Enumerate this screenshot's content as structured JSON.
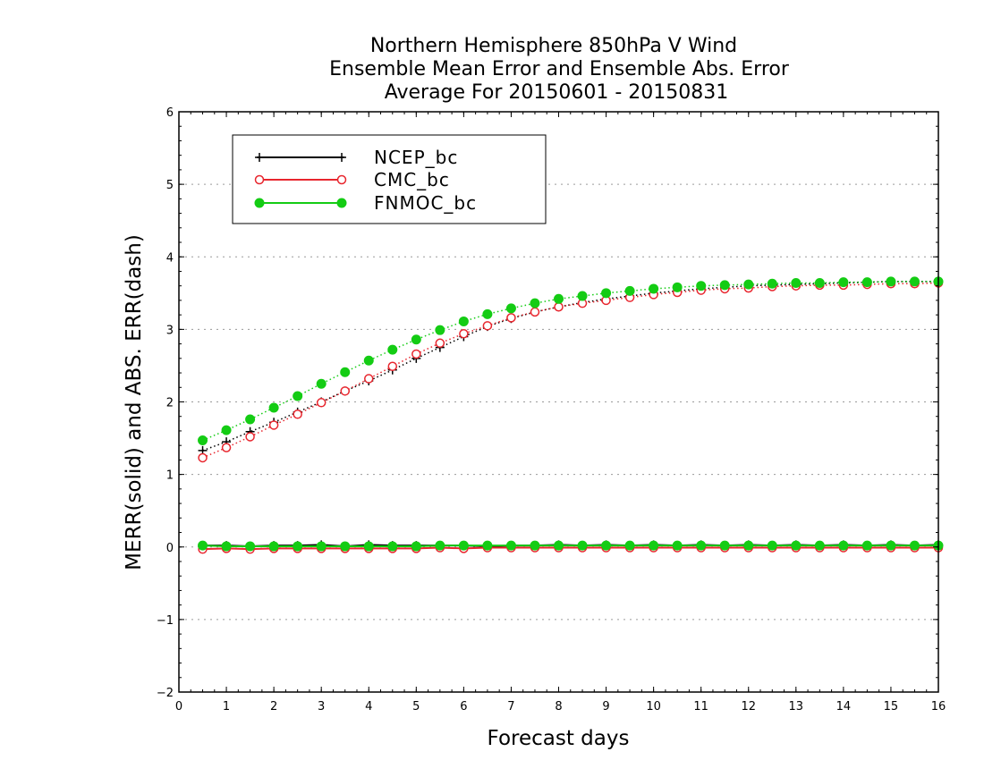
{
  "chart_data": {
    "type": "line",
    "title_lines": [
      "Northern Hemisphere 850hPa V Wind",
      "Ensemble Mean Error and Ensemble Abs. Error",
      "Average For 20150601 - 20150831"
    ],
    "xlabel": "Forecast days",
    "ylabel": "MERR(solid) and ABS. ERR(dash)",
    "xlim": [
      0,
      16
    ],
    "ylim": [
      -2,
      6
    ],
    "x_ticks": [
      "0",
      "1",
      "2",
      "3",
      "4",
      "5",
      "6",
      "7",
      "8",
      "9",
      "10",
      "11",
      "12",
      "13",
      "14",
      "15",
      "16"
    ],
    "y_ticks": [
      "−2",
      "−1",
      "0",
      "1",
      "2",
      "3",
      "4",
      "5",
      "6"
    ],
    "grid": "horizontal dotted",
    "legend_position": "top-left",
    "x": [
      0.5,
      1,
      1.5,
      2,
      2.5,
      3,
      3.5,
      4,
      4.5,
      5,
      5.5,
      6,
      6.5,
      7,
      7.5,
      8,
      8.5,
      9,
      9.5,
      10,
      10.5,
      11,
      11.5,
      12,
      12.5,
      13,
      13.5,
      14,
      14.5,
      15,
      15.5,
      16
    ],
    "series": [
      {
        "name": "NCEP_bc",
        "color": "#000000",
        "marker": "plus",
        "merr": [
          0.02,
          0.02,
          0.01,
          0.02,
          0.02,
          0.03,
          0.01,
          0.03,
          0.02,
          0.02,
          0.02,
          0.02,
          0.01,
          0.02,
          0.02,
          0.03,
          0.02,
          0.03,
          0.02,
          0.03,
          0.02,
          0.03,
          0.02,
          0.03,
          0.02,
          0.03,
          0.02,
          0.03,
          0.02,
          0.03,
          0.02,
          0.03
        ],
        "abs_err": [
          1.33,
          1.45,
          1.59,
          1.72,
          1.86,
          2.0,
          2.15,
          2.29,
          2.44,
          2.6,
          2.75,
          2.9,
          3.04,
          3.15,
          3.24,
          3.31,
          3.37,
          3.42,
          3.46,
          3.5,
          3.53,
          3.56,
          3.58,
          3.6,
          3.61,
          3.62,
          3.63,
          3.64,
          3.65,
          3.66,
          3.66,
          3.66
        ]
      },
      {
        "name": "CMC_bc",
        "color": "#e8262e",
        "marker": "open-circle",
        "merr": [
          -0.03,
          -0.02,
          -0.03,
          -0.02,
          -0.02,
          -0.02,
          -0.02,
          -0.02,
          -0.02,
          -0.02,
          -0.01,
          -0.02,
          -0.01,
          -0.01,
          -0.01,
          -0.01,
          -0.01,
          -0.01,
          -0.01,
          -0.01,
          -0.01,
          -0.01,
          -0.01,
          -0.01,
          -0.01,
          -0.01,
          -0.01,
          -0.01,
          -0.01,
          -0.01,
          -0.01,
          -0.01
        ],
        "abs_err": [
          1.23,
          1.37,
          1.52,
          1.68,
          1.83,
          1.99,
          2.15,
          2.32,
          2.49,
          2.66,
          2.81,
          2.94,
          3.05,
          3.16,
          3.24,
          3.31,
          3.36,
          3.4,
          3.44,
          3.48,
          3.51,
          3.54,
          3.56,
          3.57,
          3.59,
          3.6,
          3.61,
          3.61,
          3.62,
          3.63,
          3.63,
          3.64
        ]
      },
      {
        "name": "FNMOC_bc",
        "color": "#14cc14",
        "marker": "filled-circle",
        "merr": [
          0.02,
          0.01,
          0.01,
          0.01,
          0.01,
          0.01,
          0.01,
          0.01,
          0.01,
          0.01,
          0.02,
          0.02,
          0.02,
          0.02,
          0.02,
          0.02,
          0.02,
          0.02,
          0.02,
          0.02,
          0.02,
          0.02,
          0.02,
          0.02,
          0.02,
          0.02,
          0.02,
          0.02,
          0.02,
          0.02,
          0.02,
          0.02
        ],
        "abs_err": [
          1.47,
          1.61,
          1.76,
          1.92,
          2.08,
          2.25,
          2.41,
          2.57,
          2.72,
          2.86,
          2.99,
          3.11,
          3.21,
          3.29,
          3.36,
          3.42,
          3.46,
          3.5,
          3.53,
          3.56,
          3.58,
          3.6,
          3.61,
          3.62,
          3.63,
          3.64,
          3.64,
          3.65,
          3.65,
          3.66,
          3.66,
          3.66
        ]
      }
    ]
  }
}
